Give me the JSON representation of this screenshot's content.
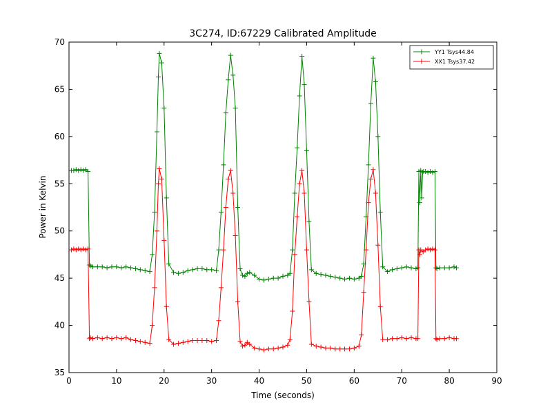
{
  "chart_data": {
    "type": "line",
    "title": "3C274, ID:67229 Calibrated Amplitude",
    "xlabel": "Time (seconds)",
    "ylabel": "Power in Kelvin",
    "xlim": [
      0,
      90
    ],
    "ylim": [
      35,
      70
    ],
    "xticks": [
      "0",
      "10",
      "20",
      "30",
      "40",
      "50",
      "60",
      "70",
      "80",
      "90"
    ],
    "yticks": [
      "35",
      "40",
      "45",
      "50",
      "55",
      "60",
      "65",
      "70"
    ],
    "grid": false,
    "legend_position": "top-right",
    "marker": "+",
    "series": [
      {
        "name": "YY1 Tsys44.84",
        "color": "#008000",
        "x": [
          0.5,
          1,
          1.5,
          2,
          2.5,
          3,
          3.5,
          4,
          4.3,
          4.5,
          5,
          6,
          7,
          8,
          9,
          10,
          11,
          12,
          13,
          14,
          15,
          16,
          17,
          17.5,
          18,
          18.5,
          18.8,
          19,
          19.5,
          20,
          20.5,
          21,
          22,
          23,
          24,
          25,
          26,
          27,
          28,
          29,
          30,
          31,
          31.5,
          32,
          32.5,
          33,
          33.5,
          34,
          34.5,
          35,
          35.5,
          36,
          36.5,
          37,
          37.5,
          38,
          39,
          40,
          41,
          42,
          43,
          44,
          45,
          46,
          46.5,
          47,
          47.5,
          48,
          48.5,
          49,
          49.5,
          50,
          50.5,
          51,
          52,
          53,
          54,
          55,
          56,
          57,
          58,
          59,
          60,
          61,
          61.5,
          62,
          62.5,
          63,
          63.5,
          64,
          64.5,
          65,
          65.5,
          66,
          67,
          68,
          69,
          70,
          71,
          72,
          73,
          73.4,
          73.6,
          73.8,
          74,
          74.2,
          74.4,
          74.6,
          75,
          75.5,
          76,
          76.5,
          77,
          77.2,
          77.4,
          78,
          79,
          80,
          81,
          81.5
        ],
        "y": [
          56.4,
          56.4,
          56.5,
          56.4,
          56.5,
          56.4,
          56.5,
          56.3,
          46.4,
          46.3,
          46.2,
          46.2,
          46.2,
          46.1,
          46.2,
          46.2,
          46.1,
          46.2,
          46.1,
          46.0,
          45.9,
          45.8,
          45.7,
          47.5,
          52.0,
          60.5,
          66.3,
          68.8,
          67.8,
          63.0,
          53.5,
          46.5,
          45.6,
          45.5,
          45.6,
          45.8,
          45.9,
          46.0,
          46.0,
          45.9,
          45.9,
          45.8,
          48.0,
          52.0,
          57.0,
          62.5,
          66.0,
          68.6,
          66.5,
          63.0,
          52.5,
          46.0,
          45.3,
          45.2,
          45.5,
          45.6,
          45.3,
          44.9,
          44.8,
          44.9,
          45.0,
          45.0,
          45.2,
          45.3,
          45.5,
          48.0,
          54.0,
          58.8,
          64.3,
          68.5,
          65.5,
          58.5,
          51.0,
          45.9,
          45.5,
          45.4,
          45.3,
          45.2,
          45.1,
          45.0,
          44.9,
          45.0,
          44.9,
          45.0,
          45.2,
          46.5,
          51.5,
          57.0,
          63.5,
          68.3,
          65.8,
          60.0,
          52.0,
          46.2,
          45.7,
          45.9,
          46.0,
          46.1,
          46.2,
          46.1,
          46.0,
          46.1,
          56.3,
          53.0,
          56.4,
          53.5,
          56.2,
          56.3,
          56.3,
          56.2,
          56.3,
          56.2,
          56.3,
          46.1,
          46.0,
          46.1,
          46.1,
          46.1,
          46.2,
          46.1
        ]
      },
      {
        "name": "XX1 Tsys37.42",
        "color": "#ff0000",
        "x": [
          0.5,
          1,
          1.5,
          2,
          2.5,
          3,
          3.5,
          4,
          4.3,
          4.5,
          5,
          6,
          7,
          8,
          9,
          10,
          11,
          12,
          13,
          14,
          15,
          16,
          17,
          17.5,
          18,
          18.5,
          18.8,
          19,
          19.5,
          20,
          20.5,
          21,
          22,
          23,
          24,
          25,
          26,
          27,
          28,
          29,
          30,
          31,
          31.5,
          32,
          32.5,
          33,
          33.5,
          34,
          34.5,
          35,
          35.5,
          36,
          36.5,
          37,
          37.5,
          38,
          39,
          40,
          41,
          42,
          43,
          44,
          45,
          46,
          46.5,
          47,
          47.5,
          48,
          48.5,
          49,
          49.5,
          50,
          50.5,
          51,
          52,
          53,
          54,
          55,
          56,
          57,
          58,
          59,
          60,
          61,
          61.5,
          62,
          62.5,
          63,
          63.5,
          64,
          64.5,
          65,
          65.5,
          66,
          67,
          68,
          69,
          70,
          71,
          72,
          73,
          73.4,
          73.6,
          73.8,
          74,
          74.5,
          75,
          75.5,
          76,
          76.5,
          77,
          77.2,
          77.4,
          78,
          79,
          80,
          81,
          81.5
        ],
        "y": [
          48.0,
          48.1,
          48.0,
          48.1,
          48.0,
          48.1,
          48.0,
          48.1,
          38.6,
          38.7,
          38.6,
          38.7,
          38.6,
          38.7,
          38.6,
          38.7,
          38.6,
          38.7,
          38.5,
          38.4,
          38.3,
          38.2,
          38.1,
          40.0,
          44.0,
          50.0,
          55.0,
          56.6,
          55.5,
          49.0,
          42.0,
          38.5,
          38.0,
          38.1,
          38.2,
          38.3,
          38.4,
          38.4,
          38.4,
          38.4,
          38.3,
          38.4,
          40.5,
          44.0,
          48.0,
          52.5,
          55.5,
          56.4,
          54.0,
          49.5,
          42.5,
          38.3,
          37.8,
          37.9,
          38.2,
          38.0,
          37.6,
          37.5,
          37.4,
          37.5,
          37.5,
          37.6,
          37.7,
          37.9,
          38.5,
          41.5,
          47.5,
          51.5,
          55.0,
          56.4,
          54.0,
          48.0,
          42.5,
          38.0,
          37.8,
          37.7,
          37.6,
          37.6,
          37.5,
          37.5,
          37.5,
          37.5,
          37.6,
          37.8,
          39.0,
          43.5,
          48.0,
          53.0,
          55.5,
          56.5,
          54.0,
          48.5,
          42.0,
          38.5,
          38.5,
          38.6,
          38.6,
          38.7,
          38.6,
          38.7,
          38.6,
          38.6,
          48.0,
          47.5,
          48.0,
          47.8,
          48.0,
          48.1,
          48.0,
          48.1,
          48.0,
          38.6,
          38.5,
          38.6,
          38.6,
          38.7,
          38.6,
          38.6
        ]
      }
    ]
  }
}
